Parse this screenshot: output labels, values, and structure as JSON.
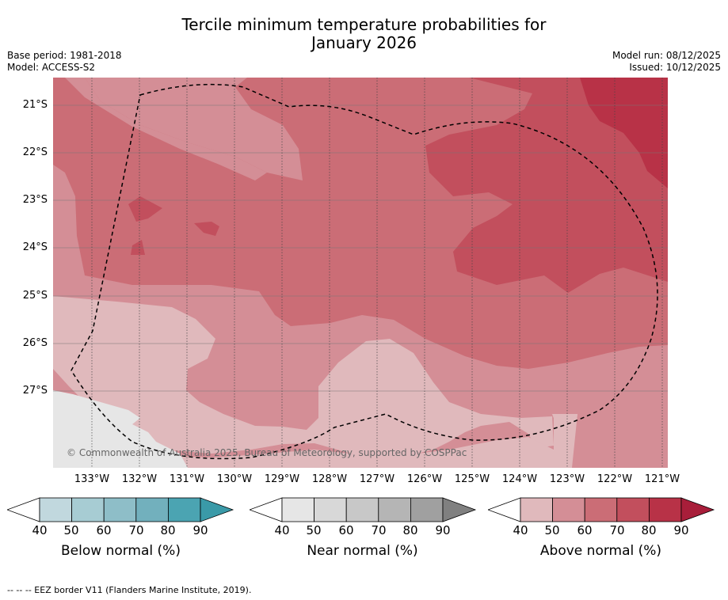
{
  "title_line1": "Tercile minimum temperature probabilities for",
  "title_line2": "January 2026",
  "base_period": "Base period: 1981-2018",
  "model": "Model: ACCESS-S2",
  "model_run": "Model run: 08/12/2025",
  "issued": "Issued: 10/12/2025",
  "lat_labels": [
    "21°S",
    "22°S",
    "23°S",
    "24°S",
    "25°S",
    "26°S",
    "27°S"
  ],
  "lon_labels": [
    "133°W",
    "132°W",
    "131°W",
    "130°W",
    "129°W",
    "128°W",
    "127°W",
    "126°W",
    "125°W",
    "124°W",
    "123°W",
    "122°W",
    "121°W"
  ],
  "copyright": "© Commonwealth of Australia 2025, Bureau of Meteorology, supported by COSPPac",
  "colorbars": [
    {
      "title": "Below normal (%)",
      "ticks": [
        "40",
        "50",
        "60",
        "70",
        "80",
        "90"
      ],
      "colors": [
        "#c1d8de",
        "#a7ccd3",
        "#8ebec8",
        "#72b0bd",
        "#4ba4b2",
        "#3a9aa8"
      ]
    },
    {
      "title": "Near normal (%)",
      "ticks": [
        "40",
        "50",
        "60",
        "70",
        "80",
        "90"
      ],
      "colors": [
        "#e6e6e6",
        "#d8d8d8",
        "#c8c8c8",
        "#b5b5b5",
        "#a0a0a0",
        "#808080"
      ]
    },
    {
      "title": "Above normal (%)",
      "ticks": [
        "40",
        "50",
        "60",
        "70",
        "80",
        "90"
      ],
      "colors": [
        "#e0b9bc",
        "#d48e96",
        "#cb6d76",
        "#c24f5d",
        "#b83247",
        "#a81e3a"
      ]
    }
  ],
  "footer": "--  --  -- EEZ border V11 (Flanders Marine Institute, 2019)."
}
